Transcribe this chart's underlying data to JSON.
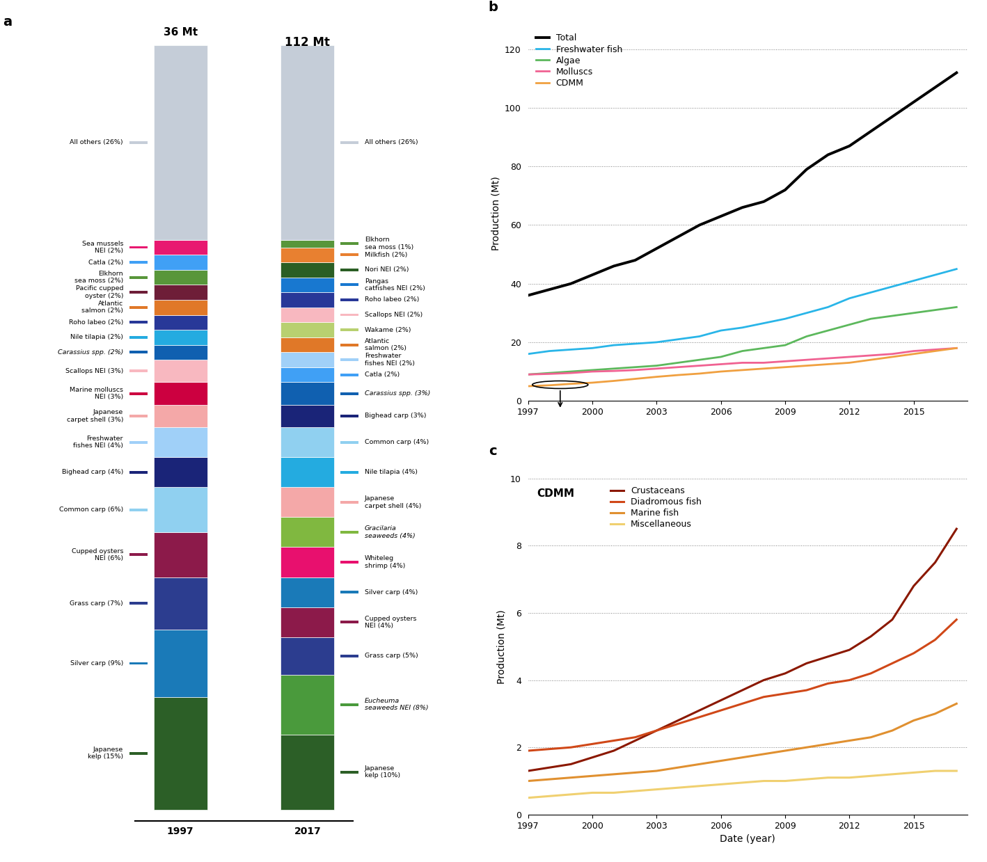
{
  "species_2017": [
    {
      "label": "Japanese\nkelp (10%)",
      "pct": 10,
      "color": "#2c5f27",
      "italic": false
    },
    {
      "label": "Eucheuma\nseaweeds NEI (8%)",
      "pct": 8,
      "color": "#4a9a3c",
      "italic": true
    },
    {
      "label": "Grass carp (5%)",
      "pct": 5,
      "color": "#2c3d8f",
      "italic": false
    },
    {
      "label": "Cupped oysters\nNEI (4%)",
      "pct": 4,
      "color": "#8c1a4a",
      "italic": false
    },
    {
      "label": "Silver carp (4%)",
      "pct": 4,
      "color": "#1a7ab8",
      "italic": false
    },
    {
      "label": "Whiteleg\nshrimp (4%)",
      "pct": 4,
      "color": "#e8106e",
      "italic": false
    },
    {
      "label": "Gracilaria\nseaweeds (4%)",
      "pct": 4,
      "color": "#80b840",
      "italic": true
    },
    {
      "label": "Japanese\ncarpet shell (4%)",
      "pct": 4,
      "color": "#f4a8a8",
      "italic": false
    },
    {
      "label": "Nile tilapia (4%)",
      "pct": 4,
      "color": "#24abe0",
      "italic": false
    },
    {
      "label": "Common carp (4%)",
      "pct": 4,
      "color": "#90d0f0",
      "italic": false
    },
    {
      "label": "Bighead carp (3%)",
      "pct": 3,
      "color": "#1a2478",
      "italic": false
    },
    {
      "label": "Carassius spp. (3%)",
      "pct": 3,
      "color": "#1060b0",
      "italic": true
    },
    {
      "label": "Catla (2%)",
      "pct": 2,
      "color": "#40a0f5",
      "italic": false
    },
    {
      "label": "Freshwater\nfishes NEI (2%)",
      "pct": 2,
      "color": "#a0d0f8",
      "italic": false
    },
    {
      "label": "Atlantic\nsalmon (2%)",
      "pct": 2,
      "color": "#e07828",
      "italic": false
    },
    {
      "label": "Wakame (2%)",
      "pct": 2,
      "color": "#b8d070",
      "italic": false
    },
    {
      "label": "Scallops NEI (2%)",
      "pct": 2,
      "color": "#f8b8c0",
      "italic": false
    },
    {
      "label": "Roho labeo (2%)",
      "pct": 2,
      "color": "#283898",
      "italic": false
    },
    {
      "label": "Pangas\ncatfishes NEI (2%)",
      "pct": 2,
      "color": "#1878d0",
      "italic": false
    },
    {
      "label": "Nori NEI (2%)",
      "pct": 2,
      "color": "#2a5e24",
      "italic": false
    },
    {
      "label": "Milkfish (2%)",
      "pct": 2,
      "color": "#e88030",
      "italic": false
    },
    {
      "label": "Elkhorn\nsea moss (1%)",
      "pct": 1,
      "color": "#58963a",
      "italic": false
    },
    {
      "label": "All others (26%)",
      "pct": 26,
      "color": "#c5cdd8",
      "italic": false
    }
  ],
  "species_1997": [
    {
      "label": "Japanese\nkelp (15%)",
      "pct": 15,
      "color": "#2c5f27",
      "italic": false
    },
    {
      "label": "Silver carp (9%)",
      "pct": 9,
      "color": "#1a7ab8",
      "italic": false
    },
    {
      "label": "Grass carp (7%)",
      "pct": 7,
      "color": "#2c3d8f",
      "italic": false
    },
    {
      "label": "Cupped oysters\nNEI (6%)",
      "pct": 6,
      "color": "#8c1a4a",
      "italic": false
    },
    {
      "label": "Common carp (6%)",
      "pct": 6,
      "color": "#90d0f0",
      "italic": false
    },
    {
      "label": "Bighead carp (4%)",
      "pct": 4,
      "color": "#1a2478",
      "italic": false
    },
    {
      "label": "Freshwater\nfishes NEI (4%)",
      "pct": 4,
      "color": "#a0d0f8",
      "italic": false
    },
    {
      "label": "Japanese\ncarpet shell (3%)",
      "pct": 3,
      "color": "#f4a8a8",
      "italic": false
    },
    {
      "label": "Marine molluscs\nNEI (3%)",
      "pct": 3,
      "color": "#cc0040",
      "italic": false
    },
    {
      "label": "Scallops NEI (3%)",
      "pct": 3,
      "color": "#f8b8c0",
      "italic": false
    },
    {
      "label": "Carassius spp. (2%)",
      "pct": 2,
      "color": "#1060b0",
      "italic": true
    },
    {
      "label": "Nile tilapia (2%)",
      "pct": 2,
      "color": "#24abe0",
      "italic": false
    },
    {
      "label": "Roho labeo (2%)",
      "pct": 2,
      "color": "#283898",
      "italic": false
    },
    {
      "label": "Atlantic\nsalmon (2%)",
      "pct": 2,
      "color": "#e07828",
      "italic": false
    },
    {
      "label": "Pacific cupped\noyster (2%)",
      "pct": 2,
      "color": "#6e1e38",
      "italic": false
    },
    {
      "label": "Elkhorn\nsea moss (2%)",
      "pct": 2,
      "color": "#58963a",
      "italic": false
    },
    {
      "label": "Catla (2%)",
      "pct": 2,
      "color": "#40a0f5",
      "italic": false
    },
    {
      "label": "Sea mussels\nNEI (2%)",
      "pct": 2,
      "color": "#e81870",
      "italic": false
    },
    {
      "label": "All others (26%)",
      "pct": 26,
      "color": "#c5cdd8",
      "italic": false
    }
  ],
  "line_b_years": [
    1997,
    1998,
    1999,
    2000,
    2001,
    2002,
    2003,
    2004,
    2005,
    2006,
    2007,
    2008,
    2009,
    2010,
    2011,
    2012,
    2013,
    2014,
    2015,
    2016,
    2017
  ],
  "line_b_total": [
    36,
    38,
    40,
    43,
    46,
    48,
    52,
    56,
    60,
    63,
    66,
    68,
    72,
    79,
    84,
    87,
    92,
    97,
    102,
    107,
    112
  ],
  "line_b_freshwater": [
    16,
    17,
    17.5,
    18,
    19,
    19.5,
    20,
    21,
    22,
    24,
    25,
    26.5,
    28,
    30,
    32,
    35,
    37,
    39,
    41,
    43,
    45
  ],
  "line_b_algae": [
    9,
    9.5,
    10,
    10.5,
    11,
    11.5,
    12,
    13,
    14,
    15,
    17,
    18,
    19,
    22,
    24,
    26,
    28,
    29,
    30,
    31,
    32
  ],
  "line_b_molluscs": [
    9,
    9.2,
    9.5,
    10,
    10.2,
    10.5,
    11,
    11.5,
    12,
    12.5,
    13,
    13,
    13.5,
    14,
    14.5,
    15,
    15.5,
    16,
    17,
    17.5,
    18
  ],
  "line_b_cdmm": [
    5,
    5.3,
    5.8,
    6.2,
    6.8,
    7.5,
    8.2,
    8.8,
    9.3,
    10,
    10.5,
    11,
    11.5,
    12,
    12.5,
    13,
    14,
    15,
    16,
    17,
    18
  ],
  "line_b_colors": {
    "total": "#000000",
    "freshwater": "#29b5e8",
    "algae": "#5cb85c",
    "molluscs": "#f06292",
    "cdmm": "#f0a040"
  },
  "line_c_years": [
    1997,
    1998,
    1999,
    2000,
    2001,
    2002,
    2003,
    2004,
    2005,
    2006,
    2007,
    2008,
    2009,
    2010,
    2011,
    2012,
    2013,
    2014,
    2015,
    2016,
    2017
  ],
  "line_c_crustaceans": [
    1.3,
    1.4,
    1.5,
    1.7,
    1.9,
    2.2,
    2.5,
    2.8,
    3.1,
    3.4,
    3.7,
    4.0,
    4.2,
    4.5,
    4.7,
    4.9,
    5.3,
    5.8,
    6.8,
    7.5,
    8.5
  ],
  "line_c_diadromous": [
    1.9,
    1.95,
    2.0,
    2.1,
    2.2,
    2.3,
    2.5,
    2.7,
    2.9,
    3.1,
    3.3,
    3.5,
    3.6,
    3.7,
    3.9,
    4.0,
    4.2,
    4.5,
    4.8,
    5.2,
    5.8
  ],
  "line_c_marine": [
    1.0,
    1.05,
    1.1,
    1.15,
    1.2,
    1.25,
    1.3,
    1.4,
    1.5,
    1.6,
    1.7,
    1.8,
    1.9,
    2.0,
    2.1,
    2.2,
    2.3,
    2.5,
    2.8,
    3.0,
    3.3
  ],
  "line_c_misc": [
    0.5,
    0.55,
    0.6,
    0.65,
    0.65,
    0.7,
    0.75,
    0.8,
    0.85,
    0.9,
    0.95,
    1.0,
    1.0,
    1.05,
    1.1,
    1.1,
    1.15,
    1.2,
    1.25,
    1.3,
    1.3
  ],
  "line_c_colors": {
    "crustaceans": "#8b1800",
    "diadromous": "#d04818",
    "marine": "#e09030",
    "misc": "#f0d070"
  }
}
